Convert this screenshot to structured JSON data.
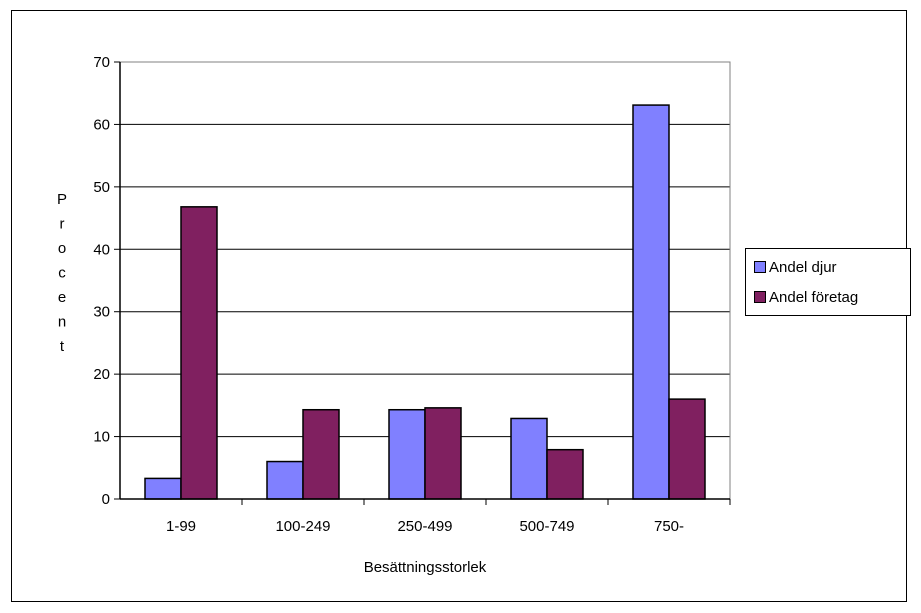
{
  "chart_data": {
    "type": "bar",
    "title": "",
    "xlabel": "Besättningsstorlek",
    "ylabel": "Procent",
    "ylim": [
      0,
      70
    ],
    "yticks": [
      0,
      10,
      20,
      30,
      40,
      50,
      60,
      70
    ],
    "grid": true,
    "legend_position": "right",
    "categories": [
      "1-99",
      "100-249",
      "250-499",
      "500-749",
      "750-"
    ],
    "series": [
      {
        "name": "Andel djur",
        "color": "#8080ff",
        "values": [
          3.3,
          6.0,
          14.3,
          12.9,
          63.1
        ]
      },
      {
        "name": "Andel företag",
        "color": "#802060",
        "values": [
          46.8,
          14.3,
          14.6,
          7.9,
          16.0
        ]
      }
    ]
  }
}
